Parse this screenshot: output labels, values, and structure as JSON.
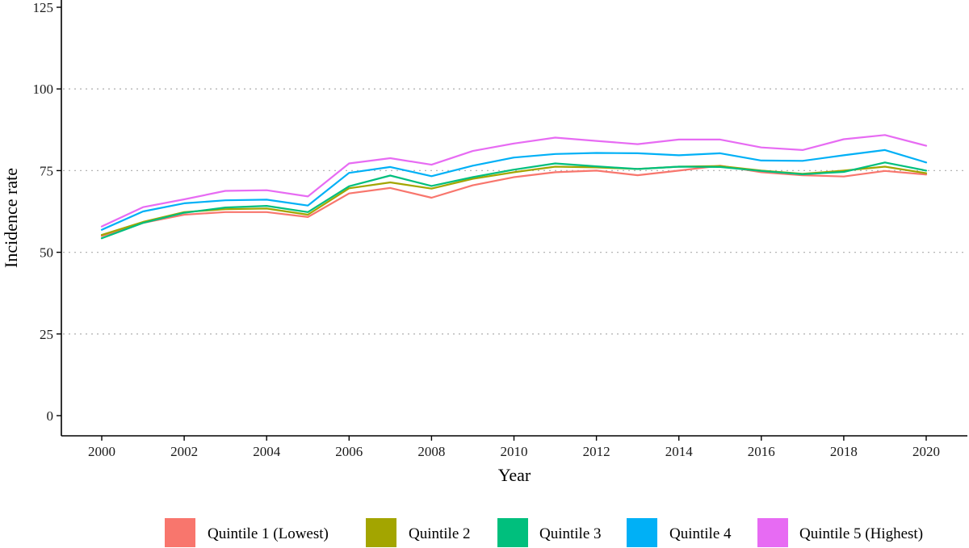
{
  "chart_data": {
    "type": "line",
    "title": "",
    "xlabel": "Year",
    "ylabel": "Incidence rate",
    "xlim": [
      2000,
      2020
    ],
    "ylim": [
      0,
      125
    ],
    "x_ticks": [
      2000,
      2002,
      2004,
      2006,
      2008,
      2010,
      2012,
      2014,
      2016,
      2018,
      2020
    ],
    "y_ticks": [
      0,
      25,
      50,
      75,
      100,
      125
    ],
    "y_grid": [
      25,
      50,
      75,
      100
    ],
    "grid": "horizontal dotted",
    "legend_position": "bottom",
    "x": [
      2000,
      2001,
      2002,
      2003,
      2004,
      2005,
      2006,
      2007,
      2008,
      2009,
      2010,
      2011,
      2012,
      2013,
      2014,
      2015,
      2016,
      2017,
      2018,
      2019,
      2020
    ],
    "series": [
      {
        "name": "Quintile 1 (Lowest)",
        "color": "#F8766D",
        "values": [
          55.0,
          59.0,
          61.5,
          62.3,
          62.3,
          60.8,
          68.0,
          69.7,
          66.7,
          70.5,
          73.0,
          74.5,
          75.0,
          73.6,
          75.0,
          76.5,
          74.5,
          73.6,
          73.2,
          74.9,
          73.8
        ]
      },
      {
        "name": "Quintile 2",
        "color": "#A3A500",
        "values": [
          55.3,
          59.3,
          62.3,
          63.2,
          63.4,
          61.5,
          69.6,
          71.4,
          69.5,
          72.5,
          74.5,
          76.2,
          76.0,
          75.5,
          76.2,
          76.4,
          75.0,
          74.0,
          75.0,
          76.2,
          74.2
        ]
      },
      {
        "name": "Quintile 3",
        "color": "#00BF7D",
        "values": [
          54.3,
          59.0,
          62.1,
          63.7,
          64.2,
          62.3,
          70.2,
          73.5,
          70.3,
          73.0,
          75.3,
          77.2,
          76.3,
          75.5,
          76.2,
          76.1,
          74.9,
          73.9,
          74.6,
          77.5,
          75.0
        ]
      },
      {
        "name": "Quintile 4",
        "color": "#00B0F6",
        "values": [
          56.9,
          62.5,
          65.0,
          65.9,
          66.1,
          64.3,
          74.3,
          76.1,
          73.3,
          76.5,
          79.0,
          80.1,
          80.4,
          80.3,
          79.7,
          80.3,
          78.1,
          78.0,
          79.7,
          81.3,
          77.5
        ]
      },
      {
        "name": "Quintile 5 (Highest)",
        "color": "#E76BF3",
        "values": [
          57.9,
          63.8,
          66.2,
          68.8,
          69.0,
          67.1,
          77.2,
          78.8,
          76.8,
          81.0,
          83.3,
          85.1,
          84.1,
          83.1,
          84.5,
          84.5,
          82.1,
          81.3,
          84.6,
          85.9,
          82.6
        ]
      }
    ]
  }
}
